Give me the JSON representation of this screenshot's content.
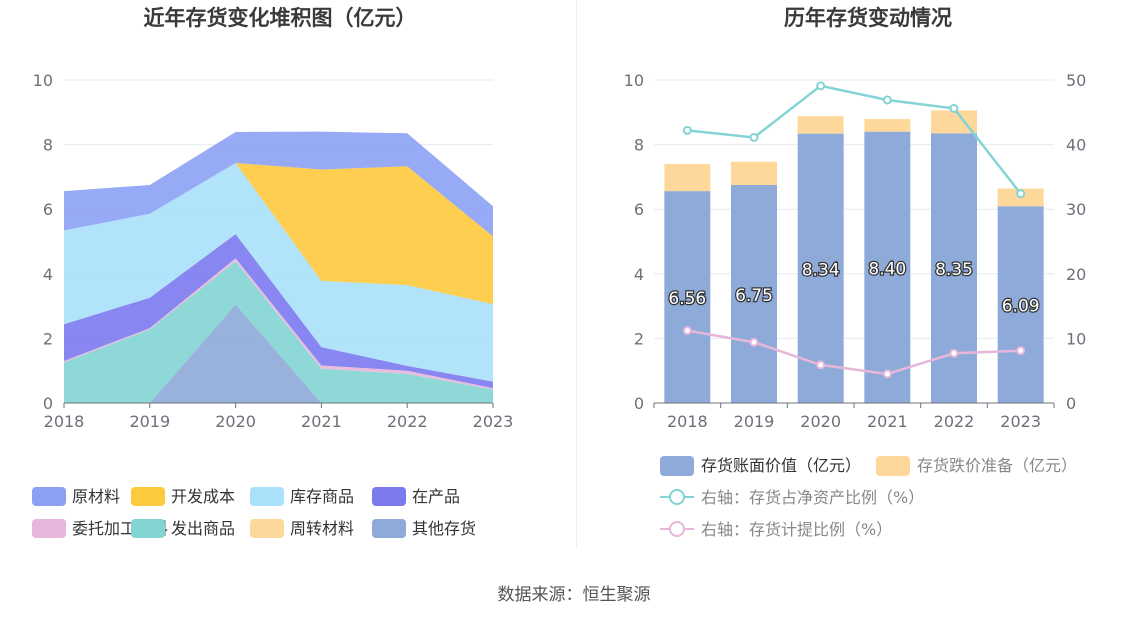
{
  "left_title": "近年存货变化堆积图（亿元）",
  "right_title": "历年存货变动情况",
  "source": "数据来源：恒生聚源",
  "chart_data": [
    {
      "type": "area",
      "stacked": true,
      "title": "近年存货变化堆积图（亿元）",
      "x": [
        "2018",
        "2019",
        "2020",
        "2021",
        "2022",
        "2023"
      ],
      "ylim": [
        0,
        10
      ],
      "yticks": [
        "0",
        "2",
        "4",
        "6",
        "8",
        "10"
      ],
      "grid": true,
      "legend_position": "bottom",
      "series": [
        {
          "name": "其他存货",
          "color": "#8eaad8",
          "values": [
            0,
            0,
            3.05,
            0,
            0,
            0
          ]
        },
        {
          "name": "周转材料",
          "color": "#fdd89a",
          "values": [
            0,
            0,
            0,
            0,
            0,
            0
          ]
        },
        {
          "name": "发出商品",
          "color": "#82d5d3",
          "values": [
            1.26,
            2.28,
            1.34,
            1.06,
            0.9,
            0.42
          ]
        },
        {
          "name": "委托加工材料",
          "color": "#e8b6da",
          "values": [
            0.04,
            0.04,
            0.09,
            0.1,
            0.1,
            0.04
          ]
        },
        {
          "name": "在产品",
          "color": "#7b79ee",
          "values": [
            1.14,
            0.94,
            0.75,
            0.57,
            0.15,
            0.2
          ]
        },
        {
          "name": "库存商品",
          "color": "#a9e0fa",
          "values": [
            2.9,
            2.6,
            2.2,
            2.05,
            2.5,
            2.4
          ]
        },
        {
          "name": "开发成本",
          "color": "#fdc93d",
          "values": [
            0,
            0,
            0,
            3.45,
            3.68,
            2.1
          ]
        },
        {
          "name": "原材料",
          "color": "#8ca1f4",
          "values": [
            1.22,
            0.89,
            0.96,
            1.17,
            1.02,
            0.93
          ]
        }
      ],
      "legend_order": [
        "原材料",
        "开发成本",
        "库存商品",
        "在产品",
        "委托加工材料",
        "发出商品",
        "周转材料",
        "其他存货"
      ]
    },
    {
      "type": "bar",
      "stacked": true,
      "title": "历年存货变动情况",
      "categories": [
        "2018",
        "2019",
        "2020",
        "2021",
        "2022",
        "2023"
      ],
      "ylim": [
        0,
        10
      ],
      "yticks": [
        "0",
        "2",
        "4",
        "6",
        "8",
        "10"
      ],
      "y2lim": [
        0,
        50
      ],
      "y2ticks": [
        "0",
        "10",
        "20",
        "30",
        "40",
        "50"
      ],
      "grid": true,
      "legend_position": "bottom",
      "series": [
        {
          "name": "存货账面价值（亿元）",
          "color": "#8eaad8",
          "values": [
            6.56,
            6.75,
            8.34,
            8.4,
            8.35,
            6.09
          ],
          "labels": [
            "6.56",
            "6.75",
            "8.34",
            "8.40",
            "8.35",
            "6.09"
          ]
        },
        {
          "name": "存货跌价准备（亿元）",
          "color": "#fdd89a",
          "values": [
            0.84,
            0.72,
            0.54,
            0.39,
            0.71,
            0.55
          ]
        }
      ],
      "line_series": [
        {
          "name": "右轴：存货占净资产比例（%）",
          "color": "#84d3d6",
          "axis": "right",
          "values": [
            42.2,
            41.1,
            49.1,
            46.9,
            45.6,
            32.4
          ]
        },
        {
          "name": "右轴：存货计提比例（%）",
          "color": "#e8b6da",
          "axis": "right",
          "values": [
            11.2,
            9.4,
            5.9,
            4.5,
            7.7,
            8.1
          ]
        }
      ]
    }
  ]
}
